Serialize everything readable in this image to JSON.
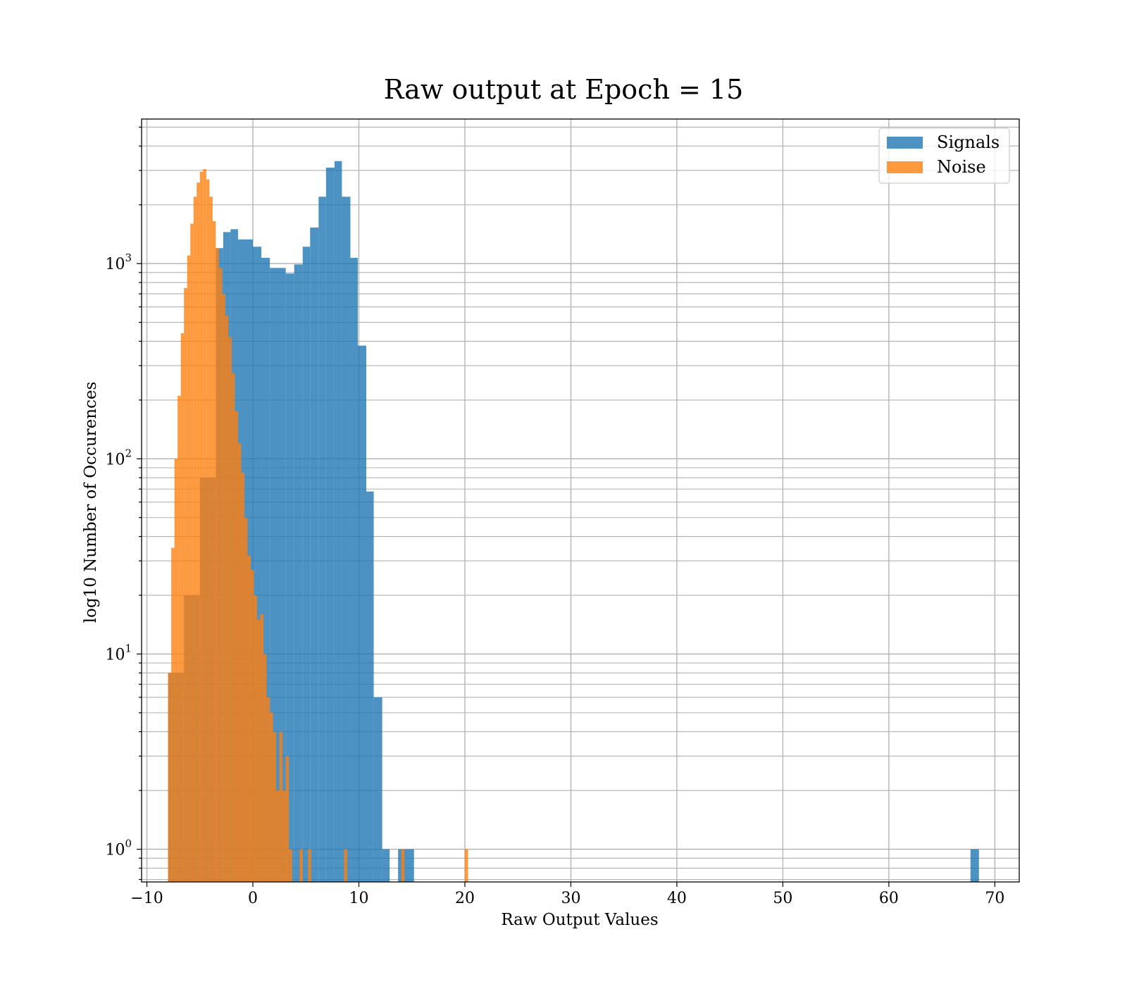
{
  "chart_data": {
    "type": "histogram",
    "title": "Raw output at Epoch = 15",
    "xlabel": "Raw Output Values",
    "ylabel": "log10 Number of Occurences",
    "x_scale": "linear",
    "y_scale": "log",
    "xlim": [
      -10.5,
      72.3
    ],
    "ylim": [
      0.68,
      5500
    ],
    "x_ticks": [
      {
        "value": -10,
        "label": "−10"
      },
      {
        "value": 0,
        "label": "0"
      },
      {
        "value": 10,
        "label": "10"
      },
      {
        "value": 20,
        "label": "20"
      },
      {
        "value": 30,
        "label": "30"
      },
      {
        "value": 40,
        "label": "40"
      },
      {
        "value": 50,
        "label": "50"
      },
      {
        "value": 60,
        "label": "60"
      },
      {
        "value": 70,
        "label": "70"
      }
    ],
    "y_ticks": [
      {
        "value": 1,
        "base": "10",
        "exp": "0"
      },
      {
        "value": 10,
        "base": "10",
        "exp": "1"
      },
      {
        "value": 100,
        "base": "10",
        "exp": "2"
      },
      {
        "value": 1000,
        "base": "10",
        "exp": "3"
      }
    ],
    "grid": true,
    "legend_position": "top-right",
    "series": [
      {
        "name": "Signals",
        "color": "#1f77b4",
        "opacity": 0.8,
        "bins": [
          {
            "x0": -8.0,
            "x1": -6.5,
            "count": 8
          },
          {
            "x0": -6.5,
            "x1": -5.0,
            "count": 20
          },
          {
            "x0": -5.0,
            "x1": -3.5,
            "count": 80
          },
          {
            "x0": -3.5,
            "x1": -2.8,
            "count": 1200
          },
          {
            "x0": -2.8,
            "x1": -2.1,
            "count": 1450
          },
          {
            "x0": -2.1,
            "x1": -1.4,
            "count": 1500
          },
          {
            "x0": -1.4,
            "x1": 0.0,
            "count": 1330
          },
          {
            "x0": 0.0,
            "x1": 0.8,
            "count": 1220
          },
          {
            "x0": 0.8,
            "x1": 1.6,
            "count": 1070
          },
          {
            "x0": 1.6,
            "x1": 3.1,
            "count": 950
          },
          {
            "x0": 3.1,
            "x1": 3.9,
            "count": 890
          },
          {
            "x0": 3.9,
            "x1": 4.7,
            "count": 990
          },
          {
            "x0": 4.7,
            "x1": 5.4,
            "count": 1220
          },
          {
            "x0": 5.4,
            "x1": 6.2,
            "count": 1530
          },
          {
            "x0": 6.2,
            "x1": 6.9,
            "count": 2200
          },
          {
            "x0": 6.9,
            "x1": 7.7,
            "count": 3100
          },
          {
            "x0": 7.7,
            "x1": 8.4,
            "count": 3350
          },
          {
            "x0": 8.4,
            "x1": 9.2,
            "count": 2200
          },
          {
            "x0": 9.2,
            "x1": 9.9,
            "count": 1070
          },
          {
            "x0": 9.9,
            "x1": 10.7,
            "count": 380
          },
          {
            "x0": 10.7,
            "x1": 11.4,
            "count": 68
          },
          {
            "x0": 11.4,
            "x1": 12.2,
            "count": 6
          },
          {
            "x0": 12.2,
            "x1": 12.9,
            "count": 1
          },
          {
            "x0": 13.7,
            "x1": 15.2,
            "count": 1
          },
          {
            "x0": 67.7,
            "x1": 68.5,
            "count": 1
          }
        ]
      },
      {
        "name": "Noise",
        "color": "#ff7f0e",
        "opacity": 0.8,
        "bins": [
          {
            "x0": -8.0,
            "x1": -7.7,
            "count": 8
          },
          {
            "x0": -7.7,
            "x1": -7.4,
            "count": 35
          },
          {
            "x0": -7.4,
            "x1": -7.1,
            "count": 100
          },
          {
            "x0": -7.1,
            "x1": -6.8,
            "count": 210
          },
          {
            "x0": -6.8,
            "x1": -6.5,
            "count": 440
          },
          {
            "x0": -6.5,
            "x1": -6.2,
            "count": 750
          },
          {
            "x0": -6.2,
            "x1": -5.9,
            "count": 1100
          },
          {
            "x0": -5.9,
            "x1": -5.6,
            "count": 1600
          },
          {
            "x0": -5.6,
            "x1": -5.3,
            "count": 2200
          },
          {
            "x0": -5.3,
            "x1": -5.0,
            "count": 2600
          },
          {
            "x0": -5.0,
            "x1": -4.7,
            "count": 2950
          },
          {
            "x0": -4.7,
            "x1": -4.4,
            "count": 3050
          },
          {
            "x0": -4.4,
            "x1": -4.1,
            "count": 2700
          },
          {
            "x0": -4.1,
            "x1": -3.8,
            "count": 2200
          },
          {
            "x0": -3.8,
            "x1": -3.5,
            "count": 1650
          },
          {
            "x0": -3.5,
            "x1": -3.2,
            "count": 1200
          },
          {
            "x0": -3.2,
            "x1": -2.9,
            "count": 950
          },
          {
            "x0": -2.9,
            "x1": -2.6,
            "count": 700
          },
          {
            "x0": -2.6,
            "x1": -2.3,
            "count": 540
          },
          {
            "x0": -2.3,
            "x1": -2.0,
            "count": 420
          },
          {
            "x0": -2.0,
            "x1": -1.7,
            "count": 275
          },
          {
            "x0": -1.7,
            "x1": -1.4,
            "count": 175
          },
          {
            "x0": -1.4,
            "x1": -1.1,
            "count": 120
          },
          {
            "x0": -1.1,
            "x1": -0.8,
            "count": 85
          },
          {
            "x0": -0.8,
            "x1": -0.5,
            "count": 50
          },
          {
            "x0": -0.5,
            "x1": -0.2,
            "count": 32
          },
          {
            "x0": -0.2,
            "x1": 0.1,
            "count": 27
          },
          {
            "x0": 0.1,
            "x1": 0.4,
            "count": 20
          },
          {
            "x0": 0.4,
            "x1": 0.7,
            "count": 15
          },
          {
            "x0": 0.7,
            "x1": 1.0,
            "count": 16
          },
          {
            "x0": 1.0,
            "x1": 1.3,
            "count": 10
          },
          {
            "x0": 1.3,
            "x1": 1.6,
            "count": 6
          },
          {
            "x0": 1.6,
            "x1": 1.9,
            "count": 5
          },
          {
            "x0": 1.9,
            "x1": 2.2,
            "count": 4
          },
          {
            "x0": 2.2,
            "x1": 2.5,
            "count": 2
          },
          {
            "x0": 2.5,
            "x1": 2.8,
            "count": 4
          },
          {
            "x0": 2.8,
            "x1": 3.1,
            "count": 2
          },
          {
            "x0": 3.1,
            "x1": 3.4,
            "count": 3
          },
          {
            "x0": 3.4,
            "x1": 3.7,
            "count": 1
          },
          {
            "x0": 4.4,
            "x1": 4.7,
            "count": 1
          },
          {
            "x0": 5.2,
            "x1": 5.5,
            "count": 1
          },
          {
            "x0": 8.6,
            "x1": 8.9,
            "count": 1
          },
          {
            "x0": 14.0,
            "x1": 14.3,
            "count": 1
          },
          {
            "x0": 20.0,
            "x1": 20.3,
            "count": 1
          }
        ]
      }
    ]
  }
}
